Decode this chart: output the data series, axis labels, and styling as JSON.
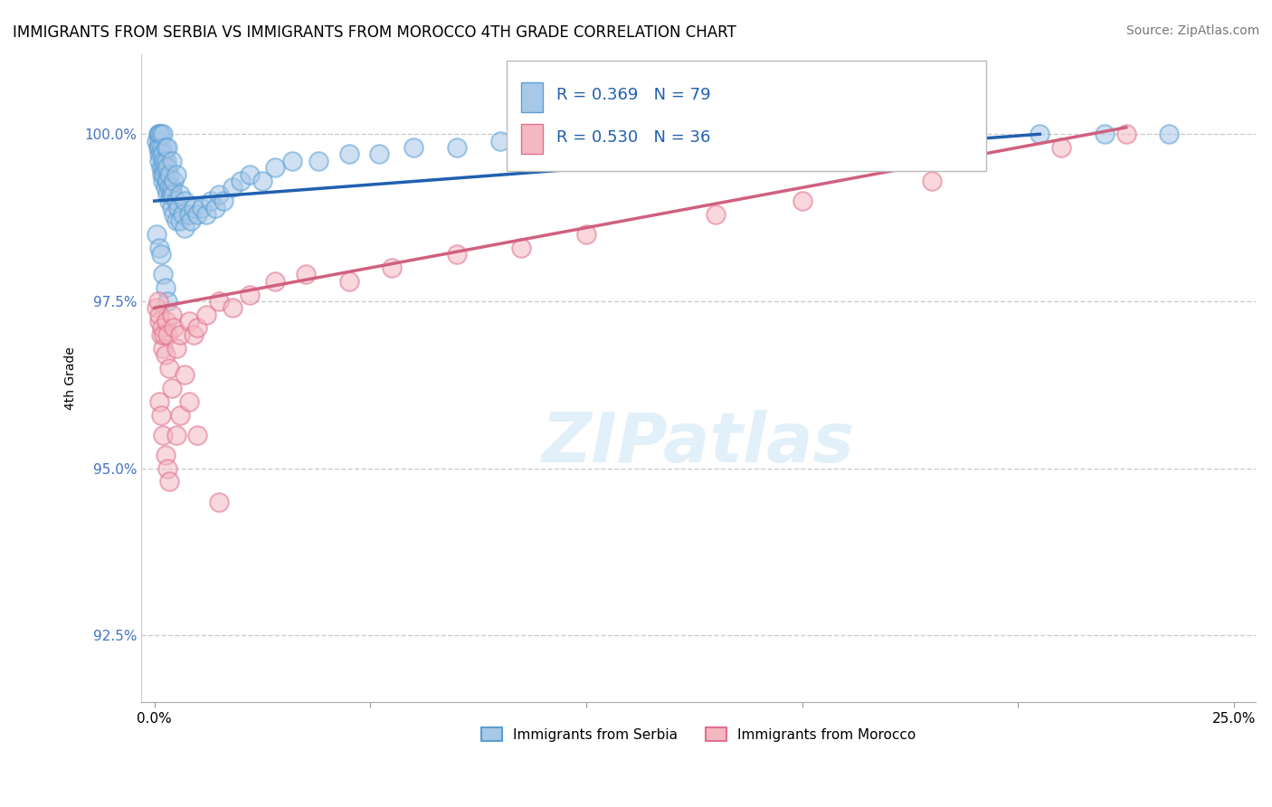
{
  "title": "IMMIGRANTS FROM SERBIA VS IMMIGRANTS FROM MOROCCO 4TH GRADE CORRELATION CHART",
  "source": "Source: ZipAtlas.com",
  "ylabel": "4th Grade",
  "xlim": [
    -0.3,
    25.5
  ],
  "ylim": [
    91.5,
    101.2
  ],
  "xticks": [
    0.0,
    5.0,
    10.0,
    15.0,
    20.0,
    25.0
  ],
  "xticklabels": [
    "0.0%",
    "",
    "",
    "",
    "",
    "25.0%"
  ],
  "yticks": [
    92.5,
    95.0,
    97.5,
    100.0
  ],
  "yticklabels": [
    "92.5%",
    "95.0%",
    "97.5%",
    "100.0%"
  ],
  "grid_color": "#cccccc",
  "background_color": "#ffffff",
  "serbia_color": "#a8c8e8",
  "morocco_color": "#f4b8c0",
  "serbia_edge_color": "#5a9fd4",
  "morocco_edge_color": "#e07090",
  "serbia_line_color": "#2060b0",
  "morocco_line_color": "#d06080",
  "ytick_color": "#4472c4",
  "R_serbia": 0.369,
  "N_serbia": 79,
  "R_morocco": 0.53,
  "N_morocco": 36,
  "legend_label_serbia": "Immigrants from Serbia",
  "legend_label_morocco": "Immigrants from Morocco",
  "serbia_x": [
    0.05,
    0.08,
    0.08,
    0.1,
    0.1,
    0.1,
    0.1,
    0.12,
    0.12,
    0.15,
    0.15,
    0.15,
    0.18,
    0.18,
    0.2,
    0.2,
    0.2,
    0.2,
    0.22,
    0.22,
    0.25,
    0.25,
    0.25,
    0.28,
    0.28,
    0.3,
    0.3,
    0.3,
    0.3,
    0.33,
    0.35,
    0.35,
    0.38,
    0.4,
    0.4,
    0.4,
    0.42,
    0.45,
    0.45,
    0.5,
    0.5,
    0.5,
    0.55,
    0.6,
    0.6,
    0.65,
    0.7,
    0.7,
    0.8,
    0.85,
    0.9,
    1.0,
    1.1,
    1.2,
    1.3,
    1.4,
    1.5,
    1.6,
    1.8,
    2.0,
    2.2,
    2.5,
    2.8,
    3.2,
    3.8,
    4.5,
    5.2,
    6.0,
    7.0,
    8.0,
    9.5,
    11.0,
    13.0,
    15.5,
    17.0,
    19.0,
    20.5,
    22.0,
    23.5
  ],
  "serbia_y": [
    99.9,
    99.8,
    100.0,
    99.7,
    99.9,
    100.0,
    100.0,
    99.6,
    99.8,
    99.5,
    99.7,
    100.0,
    99.4,
    99.8,
    99.3,
    99.5,
    99.7,
    100.0,
    99.4,
    99.6,
    99.2,
    99.5,
    99.8,
    99.3,
    99.6,
    99.1,
    99.3,
    99.5,
    99.8,
    99.2,
    99.0,
    99.4,
    99.1,
    98.9,
    99.2,
    99.6,
    99.1,
    98.8,
    99.3,
    98.7,
    99.0,
    99.4,
    98.9,
    98.7,
    99.1,
    98.8,
    98.6,
    99.0,
    98.8,
    98.7,
    98.9,
    98.8,
    98.9,
    98.8,
    99.0,
    98.9,
    99.1,
    99.0,
    99.2,
    99.3,
    99.4,
    99.3,
    99.5,
    99.6,
    99.6,
    99.7,
    99.7,
    99.8,
    99.8,
    99.9,
    99.9,
    100.0,
    100.0,
    100.0,
    100.0,
    100.0,
    100.0,
    100.0,
    100.0
  ],
  "morocco_x": [
    0.05,
    0.08,
    0.1,
    0.12,
    0.15,
    0.18,
    0.2,
    0.22,
    0.25,
    0.28,
    0.3,
    0.35,
    0.4,
    0.45,
    0.5,
    0.6,
    0.7,
    0.8,
    0.9,
    1.0,
    1.2,
    1.5,
    1.8,
    2.2,
    2.8,
    3.5,
    4.5,
    5.5,
    7.0,
    8.5,
    10.0,
    13.0,
    15.0,
    18.0,
    21.0,
    22.5
  ],
  "morocco_y": [
    97.4,
    97.5,
    97.2,
    97.3,
    97.0,
    97.1,
    96.8,
    97.0,
    96.7,
    97.2,
    97.0,
    96.5,
    97.3,
    97.1,
    96.8,
    97.0,
    96.4,
    97.2,
    97.0,
    97.1,
    97.3,
    97.5,
    97.4,
    97.6,
    97.8,
    97.9,
    97.8,
    98.0,
    98.2,
    98.3,
    98.5,
    98.8,
    99.0,
    99.3,
    99.8,
    100.0
  ]
}
